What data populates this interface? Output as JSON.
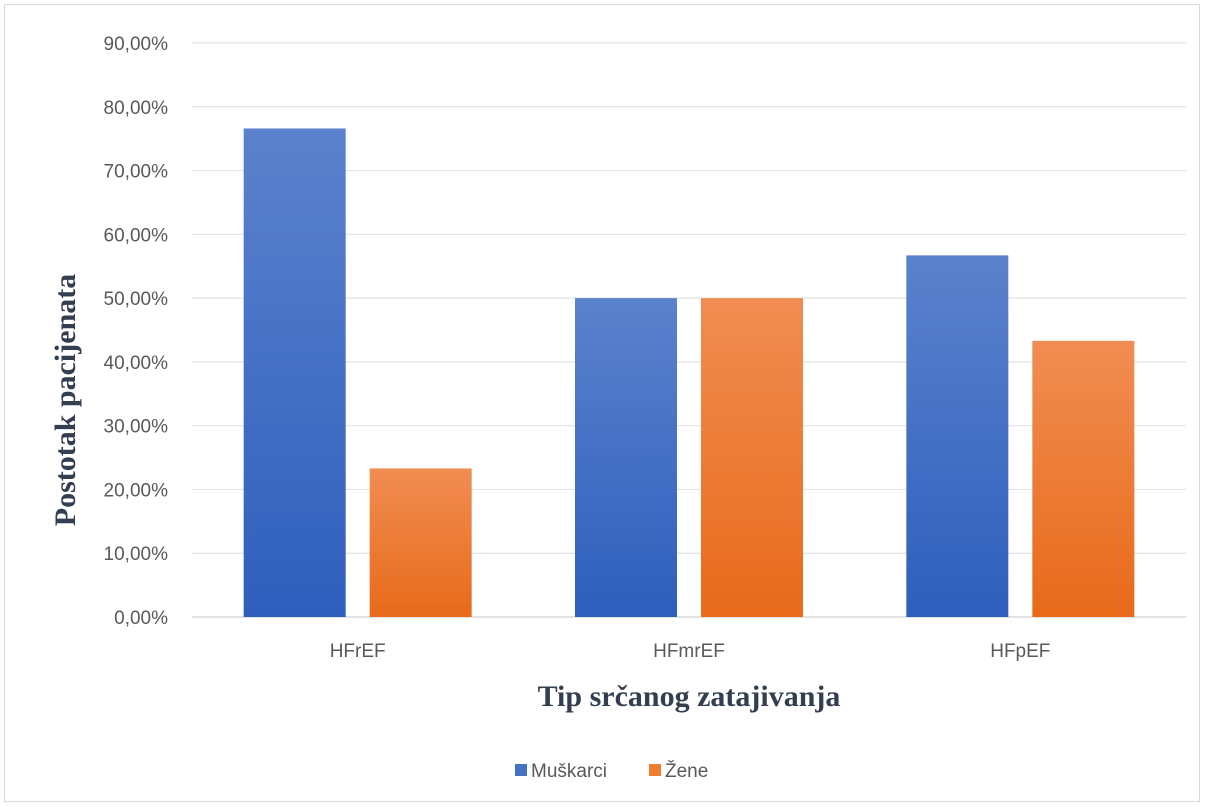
{
  "chart_data": {
    "type": "bar",
    "title": "",
    "xlabel": "Tip srčanog zatajivanja",
    "ylabel": "Postotak pacijenata",
    "categories": [
      "HFrEF",
      "HFmrEF",
      "HFpEF"
    ],
    "series": [
      {
        "name": "Muškarci",
        "values": [
          76.6,
          50.0,
          56.7
        ],
        "color": "#4472c4"
      },
      {
        "name": "Žene",
        "values": [
          23.3,
          50.0,
          43.3
        ],
        "color": "#ed7d31"
      }
    ],
    "ylim": [
      0,
      90
    ],
    "yticks": [
      0,
      10,
      20,
      30,
      40,
      50,
      60,
      70,
      80,
      90
    ],
    "ytick_labels": [
      "0,00%",
      "10,00%",
      "20,00%",
      "30,00%",
      "40,00%",
      "50,00%",
      "60,00%",
      "70,00%",
      "80,00%",
      "90,00%"
    ],
    "grid": true,
    "legend_position": "bottom"
  }
}
